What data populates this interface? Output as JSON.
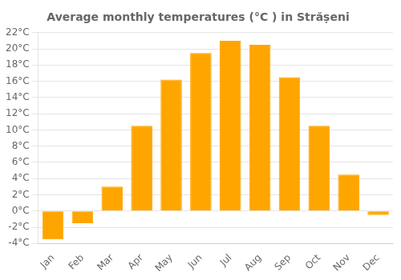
{
  "chart_data": {
    "type": "bar",
    "title": "Average monthly temperatures (°C ) in Strășeni",
    "categories": [
      "Jan",
      "Feb",
      "Mar",
      "Apr",
      "May",
      "Jun",
      "Jul",
      "Aug",
      "Sep",
      "Oct",
      "Nov",
      "Dec"
    ],
    "values": [
      -3.5,
      -1.5,
      3.0,
      10.5,
      16.2,
      19.5,
      21.0,
      20.5,
      16.5,
      10.5,
      4.5,
      -0.5
    ],
    "color": "#FFA500",
    "ylim": [
      -4,
      22
    ],
    "yticks": [
      {
        "value": -4,
        "label": "-4°C"
      },
      {
        "value": -2,
        "label": "-2°C"
      },
      {
        "value": 0,
        "label": "0°C"
      },
      {
        "value": 2,
        "label": "2°C"
      },
      {
        "value": 4,
        "label": "4°C"
      },
      {
        "value": 6,
        "label": "6°C"
      },
      {
        "value": 8,
        "label": "8°C"
      },
      {
        "value": 10,
        "label": "10°C"
      },
      {
        "value": 12,
        "label": "12°C"
      },
      {
        "value": 14,
        "label": "14°C"
      },
      {
        "value": 16,
        "label": "16°C"
      },
      {
        "value": 18,
        "label": "18°C"
      },
      {
        "value": 20,
        "label": "20°C"
      },
      {
        "value": 22,
        "label": "22°C"
      }
    ],
    "grid": true
  }
}
